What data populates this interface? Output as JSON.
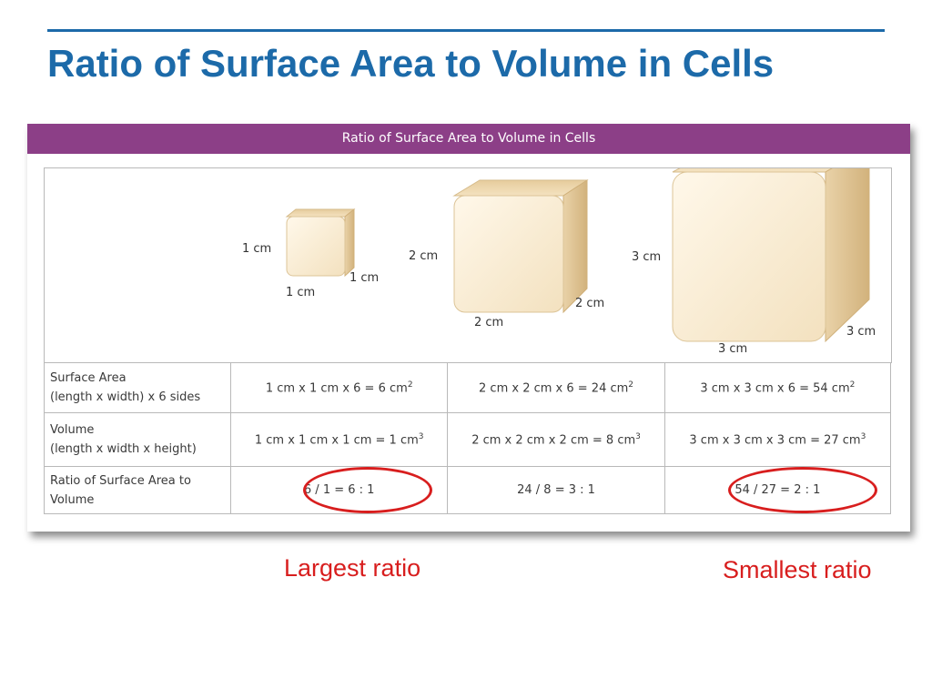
{
  "slide": {
    "title": "Ratio of Surface Area to Volume in Cells"
  },
  "figure": {
    "header": "Ratio of Surface Area to Volume in Cells",
    "cubes": [
      {
        "height_label": "1 cm",
        "width_label": "1 cm",
        "depth_label": "1 cm"
      },
      {
        "height_label": "2 cm",
        "width_label": "2 cm",
        "depth_label": "2 cm"
      },
      {
        "height_label": "3 cm",
        "width_label": "3 cm",
        "depth_label": "3 cm"
      }
    ],
    "table": {
      "surface_area": {
        "label_line1": "Surface Area",
        "label_line2": "(length x width) x 6 sides",
        "values": [
          "1 cm x 1 cm x 6 = 6 cm",
          "2 cm x 2 cm x 6 = 24 cm",
          "3 cm x 3 cm x 6 = 54 cm"
        ],
        "exponent": "2"
      },
      "volume": {
        "label_line1": "Volume",
        "label_line2": "(length x width x height)",
        "values": [
          "1 cm x 1 cm x 1 cm = 1 cm",
          "2 cm x 2 cm x 2 cm = 8 cm",
          "3 cm x 3 cm x 3 cm = 27 cm"
        ],
        "exponent": "3"
      },
      "ratio": {
        "label_line1": "Ratio of Surface Area to",
        "label_line2": "Volume",
        "values": [
          "6 / 1 = 6 : 1",
          "24 / 8 = 3 : 1",
          "54 / 27 = 2 : 1"
        ]
      }
    }
  },
  "annotations": {
    "largest": "Largest ratio",
    "smallest": "Smallest ratio",
    "highlight_color": "#d81e1e"
  },
  "colors": {
    "title": "#1c6aa9",
    "header_band": "#8c3f87",
    "cube_face": "#fbefd9",
    "cube_side": "#e3c99b",
    "cube_top": "#f1dcb7"
  }
}
